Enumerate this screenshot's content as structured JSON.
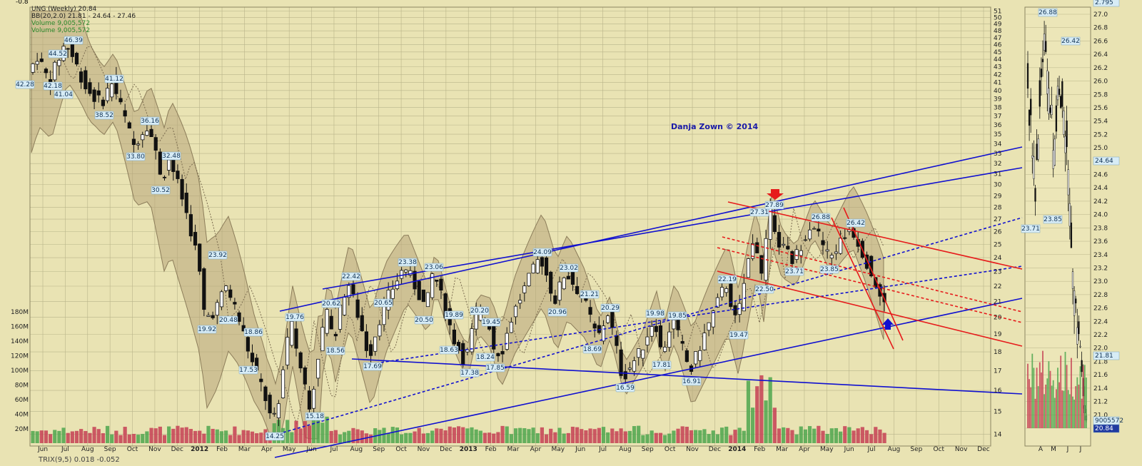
{
  "colors": {
    "background": "#e9e3b3",
    "bollinger_fill": "#b8a57a",
    "up_volume": "#4ea64e",
    "down_volume": "#c63f54",
    "channel_blue": "#1010d0",
    "channel_red": "#e61b1b",
    "grid": "#b9b48a",
    "watermark": "#1a1aa8"
  },
  "header": {
    "top_left_value": "-0.8",
    "legend": [
      "UNG (Weekly) 20.84",
      "BB(20,2.0) 21.81 - 24.64 - 27.46",
      "Volume 9,005,572",
      "Volume 9,005,572"
    ]
  },
  "watermark": "Danja Zown © 2014",
  "x_axis": {
    "labels": [
      "Jun",
      "Jul",
      "Aug",
      "Sep",
      "Oct",
      "Nov",
      "Dec",
      "2012",
      "Feb",
      "Mar",
      "Apr",
      "May",
      "Jun",
      "Jul",
      "Aug",
      "Sep",
      "Oct",
      "Nov",
      "Dec",
      "2013",
      "Feb",
      "Mar",
      "Apr",
      "May",
      "Jun",
      "Jul",
      "Aug",
      "Sep",
      "Oct",
      "Nov",
      "Dec",
      "2014",
      "Feb",
      "Mar",
      "Apr",
      "May",
      "Jun",
      "Jul",
      "Aug",
      "Sep",
      "Oct",
      "Nov",
      "Dec"
    ],
    "year_labels": [
      "2012",
      "2013",
      "2014"
    ]
  },
  "right_axis": {
    "ticks": [
      51,
      50,
      49,
      48,
      47,
      46,
      45,
      44,
      43,
      42,
      41,
      40,
      39,
      38,
      37,
      36,
      35,
      34,
      33,
      32,
      31,
      30,
      29,
      28,
      27,
      26,
      25,
      24,
      23,
      22,
      21,
      20,
      19,
      18,
      17,
      16,
      15,
      14
    ]
  },
  "volume_axis": {
    "ticks": [
      "180M",
      "160M",
      "140M",
      "120M",
      "100M",
      "80M",
      "60M",
      "40M",
      "20M"
    ]
  },
  "bottom_strip": "TRIX(9,5) 0.018 -0.052",
  "price_labels": [
    {
      "text": "42.28"
    },
    {
      "text": "44.52"
    },
    {
      "text": "46.39"
    },
    {
      "text": "42.18"
    },
    {
      "text": "41.04"
    },
    {
      "text": "41.12"
    },
    {
      "text": "38.52"
    },
    {
      "text": "36.16"
    },
    {
      "text": "33.80"
    },
    {
      "text": "32.48"
    },
    {
      "text": "30.52"
    },
    {
      "text": "23.92"
    },
    {
      "text": "19.92"
    },
    {
      "text": "20.48"
    },
    {
      "text": "18.86"
    },
    {
      "text": "17.53"
    },
    {
      "text": "14.25"
    },
    {
      "text": "19.76"
    },
    {
      "text": "15.18"
    },
    {
      "text": "20.62"
    },
    {
      "text": "22.42"
    },
    {
      "text": "18.56"
    },
    {
      "text": "17.69"
    },
    {
      "text": "20.65"
    },
    {
      "text": "23.38"
    },
    {
      "text": "23.06"
    },
    {
      "text": "20.50"
    },
    {
      "text": "19.89"
    },
    {
      "text": "18.63"
    },
    {
      "text": "17.38"
    },
    {
      "text": "20.20"
    },
    {
      "text": "19.45"
    },
    {
      "text": "18.24"
    },
    {
      "text": "17.85"
    },
    {
      "text": "24.09"
    },
    {
      "text": "23.02"
    },
    {
      "text": "20.96"
    },
    {
      "text": "21.21"
    },
    {
      "text": "20.29"
    },
    {
      "text": "18.69"
    },
    {
      "text": "16.59"
    },
    {
      "text": "19.98"
    },
    {
      "text": "17.81"
    },
    {
      "text": "19.85"
    },
    {
      "text": "16.91"
    },
    {
      "text": "22.19"
    },
    {
      "text": "19.47"
    },
    {
      "text": "27.31"
    },
    {
      "text": "27.89"
    },
    {
      "text": "22.50"
    },
    {
      "text": "26.88"
    },
    {
      "text": "23.71"
    },
    {
      "text": "23.85"
    },
    {
      "text": "26.42"
    }
  ],
  "daily_panel": {
    "right_axis": [
      "27.0",
      "26.8",
      "26.6",
      "26.4",
      "26.2",
      "26.0",
      "25.8",
      "25.6",
      "25.4",
      "25.2",
      "25.0",
      "24.8",
      "24.6",
      "24.4",
      "24.2",
      "24.0",
      "23.8",
      "23.6",
      "23.4",
      "23.2",
      "23.0",
      "22.8",
      "22.6",
      "22.4",
      "22.2",
      "22.0",
      "21.8",
      "21.6",
      "21.4",
      "21.2",
      "21.0",
      "20.8"
    ],
    "x_labels": [
      "A",
      "M",
      "J",
      "J"
    ],
    "price_labels": [
      "26.88",
      "26.42",
      "23.71",
      "23.85"
    ],
    "badges": [
      "2.795",
      "24.64",
      "21.81",
      "9005572",
      "20.84"
    ]
  },
  "chart_data": {
    "type": "candlestick",
    "title": "UNG (Weekly) 20.84",
    "ylim": [
      14,
      51
    ],
    "y_scale": "log",
    "annotated_values": [
      42.28,
      44.52,
      46.39,
      42.18,
      41.04,
      41.12,
      38.52,
      36.16,
      33.8,
      32.48,
      30.52,
      23.92,
      19.92,
      20.48,
      18.86,
      17.53,
      14.25,
      19.76,
      15.18,
      20.62,
      22.42,
      18.56,
      17.69,
      20.65,
      23.38,
      23.06,
      20.5,
      19.89,
      18.63,
      17.38,
      20.2,
      19.45,
      18.24,
      17.85,
      24.09,
      23.02,
      20.96,
      21.21,
      20.29,
      18.69,
      16.59,
      19.98,
      17.81,
      19.85,
      16.91,
      22.19,
      19.47,
      27.31,
      27.89,
      22.5,
      26.88,
      23.71,
      23.85,
      26.42
    ],
    "last_close": 20.84,
    "bollinger": {
      "lower": 21.81,
      "middle": 24.64,
      "upper": 27.46
    },
    "volume_last": 9005572
  }
}
